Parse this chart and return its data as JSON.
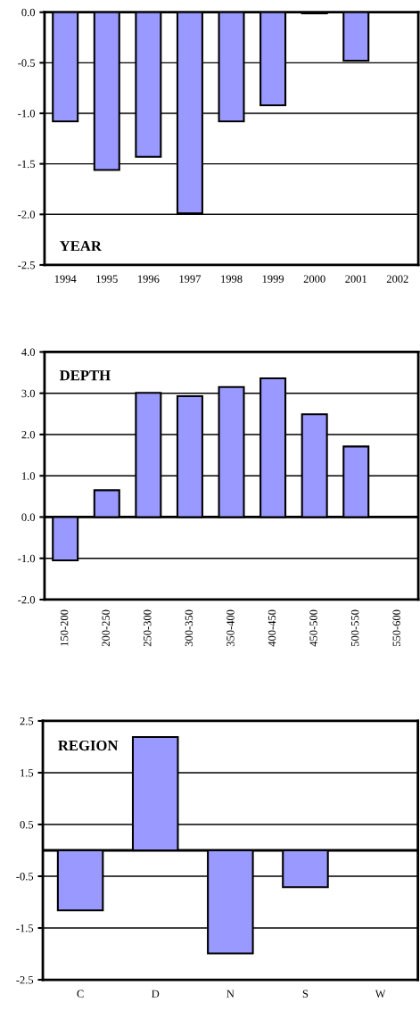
{
  "chart_data": [
    {
      "type": "bar",
      "title": "YEAR",
      "categories": [
        "1994",
        "1995",
        "1996",
        "1997",
        "1998",
        "1999",
        "2000",
        "2001",
        "2002"
      ],
      "values": [
        -1.08,
        -1.56,
        -1.43,
        -1.99,
        -1.08,
        -0.92,
        -0.01,
        -0.48,
        null
      ],
      "color": "#9999ff",
      "ylim": [
        -2.5,
        0
      ],
      "yticks": [
        {
          "value": 0,
          "label": "0.0"
        },
        -0.5,
        {
          "value": -1,
          "label": "-1.0"
        },
        -1.5,
        {
          "value": -2,
          "label": "-2.0"
        },
        -2.5
      ],
      "grid": "y"
    },
    {
      "type": "bar",
      "title": "DEPTH",
      "categories": [
        "150-200",
        "200-250",
        "250-300",
        "300-350",
        "350-400",
        "400-450",
        "450-500",
        "500-550",
        "550-600"
      ],
      "values": [
        -1.05,
        0.65,
        3.01,
        2.93,
        3.15,
        3.36,
        2.49,
        1.71,
        null
      ],
      "color": "#9999ff",
      "ylim": [
        -2,
        4
      ],
      "yticks": [
        {
          "value": -2,
          "label": "-2.0"
        },
        {
          "value": -1,
          "label": "-1.0"
        },
        {
          "value": 0,
          "label": "0.0"
        },
        {
          "value": 1,
          "label": "1.0"
        },
        {
          "value": 2,
          "label": "2.0"
        },
        {
          "value": 3,
          "label": "3.0"
        },
        {
          "value": 4,
          "label": "4.0"
        }
      ],
      "grid": "y"
    },
    {
      "type": "bar",
      "title": "REGION",
      "categories": [
        "C",
        "D",
        "N",
        "S",
        "W"
      ],
      "values": [
        -1.16,
        2.19,
        -1.99,
        -0.71,
        null
      ],
      "color": "#9999ff",
      "ylim": [
        -2.5,
        2.5
      ],
      "yticks": [
        -2.5,
        -1.5,
        -0.5,
        0.5,
        1.5,
        2.5
      ],
      "grid": "y"
    }
  ]
}
